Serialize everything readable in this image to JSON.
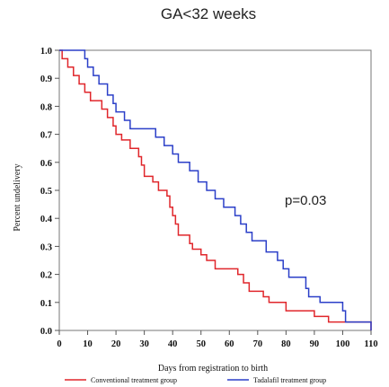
{
  "chart_data": {
    "type": "line",
    "title": "GA<32 weeks",
    "xlabel": "Days from registration to birth",
    "ylabel": "Percent undelivery",
    "xlim": [
      0,
      110
    ],
    "ylim": [
      0.0,
      1.0
    ],
    "x_ticks": [
      "0",
      "10",
      "20",
      "30",
      "40",
      "50",
      "60",
      "70",
      "80",
      "90",
      "100",
      "110"
    ],
    "y_ticks": [
      "0.0",
      "0.1",
      "0.2",
      "0.3",
      "0.4",
      "0.5",
      "0.6",
      "0.7",
      "0.8",
      "0.9",
      "1.0"
    ],
    "grid": false,
    "legend_position": "bottom",
    "annotation": "p=0.03",
    "series": [
      {
        "name": "Conventional treatment group",
        "color": "#e0262b",
        "steps": [
          [
            0,
            1.0
          ],
          [
            1,
            0.97
          ],
          [
            3,
            0.94
          ],
          [
            5,
            0.91
          ],
          [
            7,
            0.88
          ],
          [
            9,
            0.85
          ],
          [
            11,
            0.82
          ],
          [
            15,
            0.79
          ],
          [
            17,
            0.76
          ],
          [
            19,
            0.73
          ],
          [
            20,
            0.7
          ],
          [
            22,
            0.68
          ],
          [
            25,
            0.65
          ],
          [
            28,
            0.62
          ],
          [
            29,
            0.59
          ],
          [
            30,
            0.55
          ],
          [
            33,
            0.53
          ],
          [
            35,
            0.5
          ],
          [
            38,
            0.48
          ],
          [
            39,
            0.44
          ],
          [
            40,
            0.41
          ],
          [
            41,
            0.38
          ],
          [
            42,
            0.34
          ],
          [
            46,
            0.31
          ],
          [
            47,
            0.29
          ],
          [
            50,
            0.27
          ],
          [
            52,
            0.25
          ],
          [
            55,
            0.22
          ],
          [
            63,
            0.2
          ],
          [
            65,
            0.17
          ],
          [
            67,
            0.14
          ],
          [
            72,
            0.12
          ],
          [
            74,
            0.1
          ],
          [
            80,
            0.07
          ],
          [
            90,
            0.05
          ],
          [
            95,
            0.03
          ],
          [
            110,
            0.0
          ]
        ]
      },
      {
        "name": "Tadalafil treatment group",
        "color": "#2b3fc8",
        "steps": [
          [
            0,
            1.0
          ],
          [
            9,
            0.97
          ],
          [
            10,
            0.94
          ],
          [
            12,
            0.91
          ],
          [
            14,
            0.88
          ],
          [
            17,
            0.84
          ],
          [
            19,
            0.81
          ],
          [
            20,
            0.78
          ],
          [
            23,
            0.75
          ],
          [
            25,
            0.72
          ],
          [
            34,
            0.69
          ],
          [
            37,
            0.66
          ],
          [
            40,
            0.63
          ],
          [
            42,
            0.6
          ],
          [
            46,
            0.57
          ],
          [
            49,
            0.53
          ],
          [
            52,
            0.5
          ],
          [
            55,
            0.47
          ],
          [
            58,
            0.44
          ],
          [
            62,
            0.41
          ],
          [
            64,
            0.38
          ],
          [
            66,
            0.35
          ],
          [
            68,
            0.32
          ],
          [
            73,
            0.28
          ],
          [
            77,
            0.25
          ],
          [
            79,
            0.22
          ],
          [
            81,
            0.19
          ],
          [
            87,
            0.15
          ],
          [
            88,
            0.12
          ],
          [
            92,
            0.1
          ],
          [
            100,
            0.07
          ],
          [
            101,
            0.03
          ],
          [
            110,
            0.0
          ]
        ]
      }
    ]
  }
}
